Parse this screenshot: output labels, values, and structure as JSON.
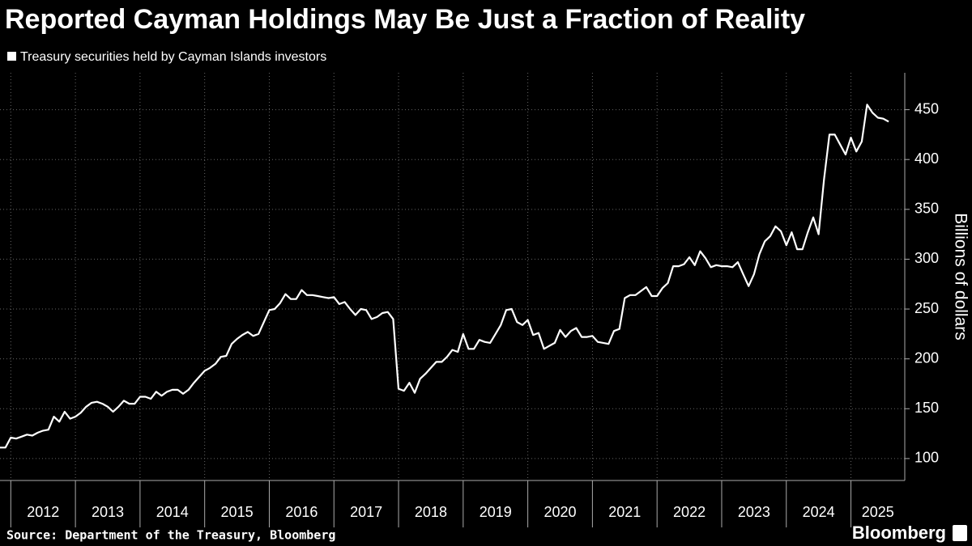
{
  "chart_data": {
    "type": "line",
    "title": "Reported Cayman Holdings May Be Just a Fraction of Reality",
    "y_label": "Billions of dollars",
    "source": "Source: Department of the Treasury, Bloomberg",
    "branding": "Bloomberg",
    "x": [
      2011.833,
      2011.917,
      2012,
      2012.083,
      2012.167,
      2012.25,
      2012.333,
      2012.417,
      2012.5,
      2012.583,
      2012.667,
      2012.75,
      2012.833,
      2012.917,
      2013,
      2013.083,
      2013.167,
      2013.25,
      2013.333,
      2013.417,
      2013.5,
      2013.583,
      2013.667,
      2013.75,
      2013.833,
      2013.917,
      2014,
      2014.083,
      2014.167,
      2014.25,
      2014.333,
      2014.417,
      2014.5,
      2014.583,
      2014.667,
      2014.75,
      2014.833,
      2014.917,
      2015,
      2015.083,
      2015.167,
      2015.25,
      2015.333,
      2015.417,
      2015.5,
      2015.583,
      2015.667,
      2015.75,
      2015.833,
      2015.917,
      2016,
      2016.083,
      2016.167,
      2016.25,
      2016.333,
      2016.417,
      2016.5,
      2016.583,
      2016.667,
      2016.75,
      2016.833,
      2016.917,
      2017,
      2017.083,
      2017.167,
      2017.25,
      2017.333,
      2017.417,
      2017.5,
      2017.583,
      2017.667,
      2017.75,
      2017.833,
      2017.917,
      2018,
      2018.083,
      2018.167,
      2018.25,
      2018.333,
      2018.417,
      2018.5,
      2018.583,
      2018.667,
      2018.75,
      2018.833,
      2018.917,
      2019,
      2019.083,
      2019.167,
      2019.25,
      2019.333,
      2019.417,
      2019.5,
      2019.583,
      2019.667,
      2019.75,
      2019.833,
      2019.917,
      2020,
      2020.083,
      2020.167,
      2020.25,
      2020.333,
      2020.417,
      2020.5,
      2020.583,
      2020.667,
      2020.75,
      2020.833,
      2020.917,
      2021,
      2021.083,
      2021.167,
      2021.25,
      2021.333,
      2021.417,
      2021.5,
      2021.583,
      2021.667,
      2021.75,
      2021.833,
      2021.917,
      2022,
      2022.083,
      2022.167,
      2022.25,
      2022.333,
      2022.417,
      2022.5,
      2022.583,
      2022.667,
      2022.75,
      2022.833,
      2022.917,
      2023,
      2023.083,
      2023.167,
      2023.25,
      2023.333,
      2023.417,
      2023.5,
      2023.583,
      2023.667,
      2023.75,
      2023.833,
      2023.917,
      2024,
      2024.083,
      2024.167,
      2024.25,
      2024.333,
      2024.417,
      2024.5,
      2024.583,
      2024.667,
      2024.75,
      2024.833,
      2024.917,
      2025,
      2025.083,
      2025.167,
      2025.25,
      2025.333,
      2025.417,
      2025.5,
      2025.583
    ],
    "series": [
      {
        "name": "Treasury securities held by Cayman Islands investors",
        "color": "#ffffff",
        "values": [
          111,
          111,
          121,
          120,
          122,
          124,
          123,
          126,
          128,
          129,
          142,
          137,
          147,
          140,
          142,
          146,
          152,
          156,
          157,
          155,
          152,
          147,
          152,
          158,
          155,
          155,
          162,
          162,
          160,
          167,
          163,
          167,
          169,
          169,
          165,
          169,
          176,
          182,
          188,
          191,
          195,
          202,
          203,
          215,
          220,
          224,
          227,
          223,
          225,
          237,
          249,
          250,
          256,
          265,
          260,
          260,
          269,
          264,
          264,
          263,
          262,
          261,
          262,
          255,
          257,
          250,
          244,
          250,
          249,
          240,
          242,
          246,
          247,
          240,
          170,
          168,
          176,
          166,
          180,
          185,
          191,
          197,
          197,
          202,
          209,
          207,
          225,
          210,
          210,
          219,
          217,
          216,
          225,
          234,
          249,
          250,
          237,
          234,
          239,
          224,
          226,
          210,
          213,
          216,
          229,
          222,
          228,
          231,
          222,
          222,
          223,
          217,
          216,
          215,
          228,
          230,
          261,
          264,
          264,
          268,
          272,
          263,
          263,
          271,
          276,
          293,
          293,
          295,
          302,
          294,
          308,
          301,
          292,
          294,
          293,
          293,
          292,
          297,
          285,
          273,
          285,
          305,
          318,
          323,
          333,
          328,
          314,
          327,
          310,
          310,
          327,
          342,
          325,
          380,
          425,
          425,
          415,
          405,
          422,
          408,
          418,
          455,
          447,
          442,
          441,
          438
        ]
      }
    ],
    "xlim": [
      2011.833,
      2025.833
    ],
    "xticks": [
      2012,
      2013,
      2014,
      2015,
      2016,
      2017,
      2018,
      2019,
      2020,
      2021,
      2022,
      2023,
      2024,
      2025
    ],
    "ylim": [
      78,
      487
    ],
    "yticks": [
      100,
      150,
      200,
      250,
      300,
      350,
      400,
      450
    ],
    "grid": true
  }
}
